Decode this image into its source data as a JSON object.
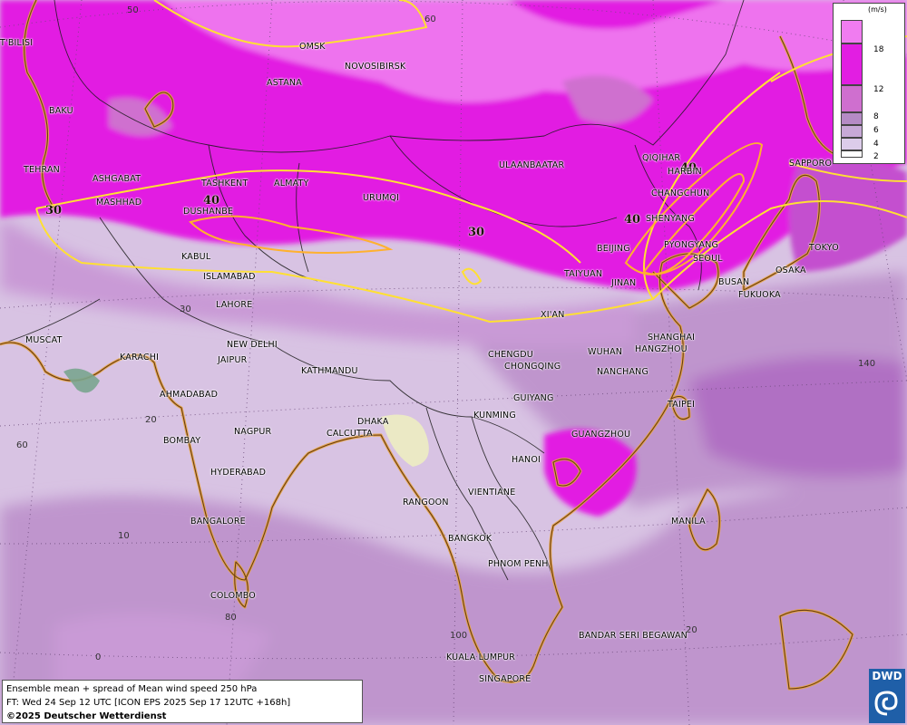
{
  "map": {
    "info_lines": [
      "Ensemble mean + spread of Mean wind speed 250 hPa",
      "FT: Wed 24 Sep 12 UTC [ICON EPS 2025 Sep 17 12UTC +168h]",
      "©2025 Deutscher Wetterdienst"
    ],
    "logo_text": "DWD",
    "legend": {
      "unit": "(m/s)",
      "levels": [
        {
          "label": "18",
          "color": "#f07cf0"
        },
        {
          "label": "12",
          "color": "#e21ee2"
        },
        {
          "label": "8",
          "color": "#cf6fcf"
        },
        {
          "label": "6",
          "color": "#b58bc5"
        },
        {
          "label": "4",
          "color": "#c7a9d7"
        },
        {
          "label": "2",
          "color": "#dcccea"
        }
      ]
    },
    "contour_labels": [
      "30",
      "40",
      "30",
      "40",
      "40"
    ],
    "grid_labels": [
      "50",
      "60",
      "30",
      "20",
      "10",
      "0",
      "60",
      "80",
      "100",
      "140",
      "20"
    ],
    "cities": [
      "OMSK",
      "NOVOSIBIRSK",
      "T'BILISI",
      "ASTANA",
      "BAKU",
      "TEHRAN",
      "ASHGABAT",
      "MASHHAD",
      "TASHKENT",
      "ALMATY",
      "DUSHANBE",
      "URUMQI",
      "ULAANBAATAR",
      "QIQIHAR",
      "HARBIN",
      "CHANGCHUN",
      "SAPPORO",
      "SHENYANG",
      "PYONGYANG",
      "SEOUL",
      "BEIJING",
      "TAIYUAN",
      "JINAN",
      "TOKYO",
      "OSAKA",
      "BUSAN",
      "FUKUOKA",
      "KABUL",
      "ISLAMABAD",
      "LAHORE",
      "XI'AN",
      "MUSCAT",
      "NEW DELHI",
      "KARACHI",
      "JAIPUR",
      "KATHMANDU",
      "CHENGDU",
      "CHONGQING",
      "WUHAN",
      "SHANGHAI",
      "HANGZHOU",
      "NANCHANG",
      "AHMADABAD",
      "GUIYANG",
      "TAIPEI",
      "KUNMING",
      "DHAKA",
      "CALCUTTA",
      "NAGPUR",
      "BOMBAY",
      "GUANGZHOU",
      "HANOI",
      "HYDERABAD",
      "RANGOON",
      "VIENTIANE",
      "MANILA",
      "BANGALORE",
      "BANGKOK",
      "PHNOM PENH",
      "COLOMBO",
      "BANDAR SERI BEGAWAN",
      "KUALA LUMPUR",
      "SINGAPORE"
    ],
    "colors": {
      "strong_wind": "#e21ee2",
      "very_strong_wind": "#f07cf0",
      "contour_30": "#ffe033",
      "contour_40": "#ffb12e"
    }
  }
}
